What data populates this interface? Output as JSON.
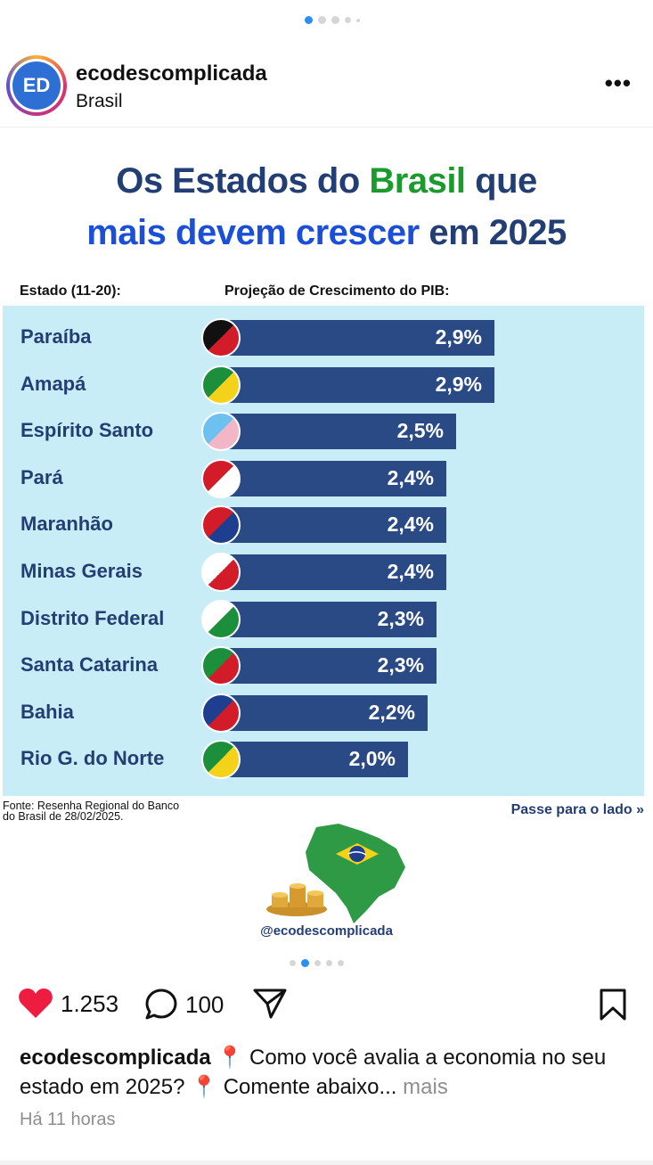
{
  "post": {
    "username": "ecodescomplicada",
    "location": "Brasil",
    "avatar_text": "ED"
  },
  "infographic": {
    "title_line1_part1": "Os Estados do ",
    "title_line1_part2": "Brasil",
    "title_line1_part3": " que",
    "title_line2_part1": "mais devem crescer",
    "title_line2_part2": " em 2025",
    "col_state": "Estado (11-20):",
    "col_gdp": "Projeção de Crescimento do PIB:",
    "source_line1": "Fonte: Resenha Regional do Banco",
    "source_line2": "do Brasil de 28/02/2025.",
    "swipe": "Passe para o lado »",
    "handle": "@ecodescomplicada"
  },
  "chart_data": {
    "type": "bar",
    "title": "Os Estados do Brasil que mais devem crescer em 2025",
    "xlabel": "Projeção de Crescimento do PIB:",
    "ylabel": "Estado (11-20):",
    "categories": [
      "Paraíba",
      "Amapá",
      "Espírito Santo",
      "Pará",
      "Maranhão",
      "Minas Gerais",
      "Distrito Federal",
      "Santa Catarina",
      "Bahia",
      "Rio G. do Norte"
    ],
    "values": [
      2.9,
      2.9,
      2.5,
      2.4,
      2.4,
      2.4,
      2.3,
      2.3,
      2.2,
      2.0
    ],
    "labels": [
      "2,9%",
      "2,9%",
      "2,5%",
      "2,4%",
      "2,4%",
      "2,4%",
      "2,3%",
      "2,3%",
      "2,2%",
      "2,0%"
    ],
    "unit": "%"
  },
  "actions": {
    "likes": "1.253",
    "comments": "100"
  },
  "caption": {
    "username": "ecodescomplicada",
    "text1": " 📍 Como você avalia a economia no seu estado em 2025? 📍  Comente abaixo... ",
    "more": "mais"
  },
  "time": "Há 11 horas",
  "colors": {
    "bar": "#2a4a86",
    "chart_bg": "#c9edf7",
    "like": "#ed1c40"
  }
}
